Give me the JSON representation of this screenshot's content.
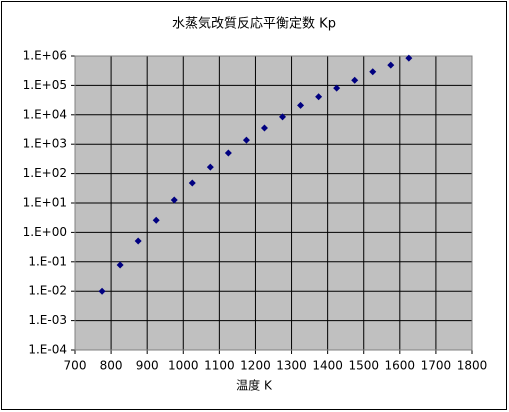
{
  "chart_data": {
    "type": "scatter",
    "title": "水蒸気改質反応平衡定数 Kp",
    "x_label": "温度 K",
    "log_y": true,
    "grid": true,
    "color": "#000080",
    "x": [
      775,
      825,
      875,
      925,
      975,
      1025,
      1075,
      1125,
      1175,
      1225,
      1275,
      1325,
      1375,
      1425,
      1475,
      1525,
      1575,
      1625
    ],
    "values": [
      0.01,
      0.078,
      0.51,
      2.6,
      12.6,
      48,
      166,
      500,
      1380,
      3550,
      8500,
      21000,
      41000,
      81000,
      150000,
      290000,
      490000,
      850000
    ],
    "xlim": [
      700,
      1800
    ],
    "xticks": [
      700,
      800,
      900,
      1000,
      1100,
      1200,
      1300,
      1400,
      1500,
      1600,
      1700,
      1800
    ],
    "ylim": [
      0.0001,
      1000000
    ],
    "yticks": [
      {
        "value": 0.0001,
        "label": "1.E-04"
      },
      {
        "value": 0.001,
        "label": "1.E-03"
      },
      {
        "value": 0.01,
        "label": "1.E-02"
      },
      {
        "value": 0.1,
        "label": "1.E-01"
      },
      {
        "value": 1,
        "label": "1.E+00"
      },
      {
        "value": 10,
        "label": "1.E+01"
      },
      {
        "value": 100,
        "label": "1.E+02"
      },
      {
        "value": 1000,
        "label": "1.E+03"
      },
      {
        "value": 10000,
        "label": "1.E+04"
      },
      {
        "value": 100000,
        "label": "1.E+05"
      },
      {
        "value": 1000000,
        "label": "1.E+06"
      }
    ]
  }
}
